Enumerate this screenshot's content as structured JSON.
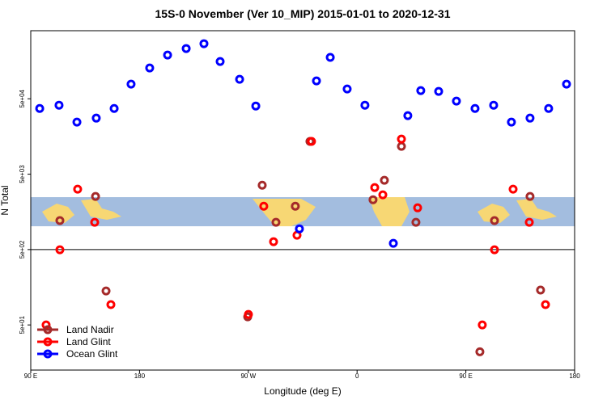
{
  "chart_data": {
    "type": "scatter",
    "title": "15S-0 November (Ver 10_MIP)   2015-01-01 to 2020-12-31",
    "x_label": "Longitude (deg E)",
    "y_label": "N Total",
    "log_y": true,
    "xlim": [
      90,
      540
    ],
    "ylim": [
      12.6,
      400000
    ],
    "xticks": [
      {
        "value": 90,
        "label": "90 E"
      },
      {
        "value": 180,
        "label": "180"
      },
      {
        "value": 270,
        "label": "90 W"
      },
      {
        "value": 360,
        "label": "0"
      },
      {
        "value": 450,
        "label": "90 E"
      },
      {
        "value": 540,
        "label": "180"
      }
    ],
    "yticks": [
      {
        "value": 50,
        "label": "5e+01"
      },
      {
        "value": 500,
        "label": "5e+02"
      },
      {
        "value": 5000,
        "label": "5e+03"
      },
      {
        "value": 50000,
        "label": "5e+04"
      }
    ],
    "hline": 500,
    "legend": "bottom-left",
    "series": [
      {
        "name": "Land Nadir",
        "color": "#a52a2a",
        "x": [
          114.1,
          143.6,
          152.3,
          269.5,
          281.5,
          292.9,
          308.9,
          321.0,
          373.2,
          382.6,
          396.7,
          408.7,
          461.6,
          473.7,
          503.1,
          511.8
        ],
        "values": [
          1210,
          2530,
          141,
          64,
          3570,
          1150,
          1880,
          13600,
          2290,
          4150,
          11700,
          1150,
          22,
          1210,
          2530,
          145
        ]
      },
      {
        "name": "Land Glint",
        "color": "#ff0000",
        "x": [
          102.7,
          114.1,
          128.8,
          142.9,
          156.3,
          270.1,
          282.8,
          290.9,
          310.3,
          322.3,
          374.6,
          381.3,
          396.7,
          410.1,
          463.6,
          473.7,
          489.1,
          502.5,
          515.9
        ],
        "values": [
          50,
          497,
          3160,
          1150,
          93,
          69,
          1880,
          635,
          774,
          13600,
          3320,
          2660,
          14600,
          1790,
          50,
          497,
          3160,
          1150,
          93
        ]
      },
      {
        "name": "Ocean Glint",
        "color": "#0000ff",
        "x": [
          97.4,
          113.4,
          128.2,
          144.2,
          159.0,
          173.0,
          188.4,
          203.2,
          218.6,
          233.3,
          246.7,
          262.8,
          276.2,
          312.3,
          326.4,
          337.8,
          351.8,
          366.5,
          390.0,
          402.0,
          412.7,
          427.5,
          442.2,
          457.6,
          473.0,
          487.7,
          503.1,
          518.5,
          533.3
        ],
        "values": [
          37200,
          41100,
          24500,
          27700,
          37200,
          78200,
          128000,
          190000,
          232000,
          269000,
          156000,
          90600,
          40100,
          942,
          86300,
          177000,
          67400,
          41100,
          605,
          29900,
          64200,
          62600,
          46600,
          37200,
          41100,
          24500,
          27700,
          37200,
          78200
        ]
      }
    ]
  }
}
